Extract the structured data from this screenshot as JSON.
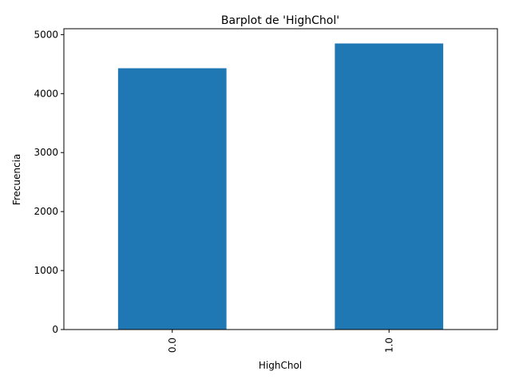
{
  "chart_data": {
    "type": "bar",
    "title": "Barplot de 'HighChol'",
    "xlabel": "HighChol",
    "ylabel": "Frecuencia",
    "categories": [
      "0.0",
      "1.0"
    ],
    "values": [
      4430,
      4850
    ],
    "ylim": [
      0,
      5100
    ],
    "yticks": [
      0,
      1000,
      2000,
      3000,
      4000,
      5000
    ],
    "grid": false,
    "legend": "none",
    "bar_color": "#1f77b4"
  }
}
